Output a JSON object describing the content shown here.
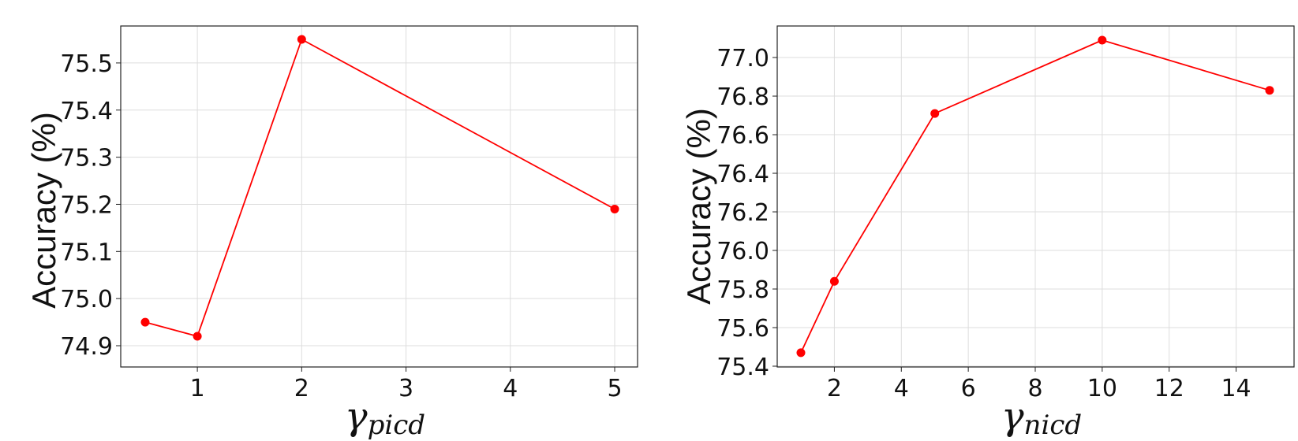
{
  "chart_data": [
    {
      "type": "line",
      "xlabel_symbol": "γ",
      "xlabel_subscript": "picd",
      "ylabel": "Accuracy (%)",
      "x_tick_labels": [
        "1",
        "2",
        "3",
        "4",
        "5"
      ],
      "y_tick_labels": [
        "74.9",
        "75.0",
        "75.1",
        "75.2",
        "75.3",
        "75.4",
        "75.5"
      ],
      "xlim": [
        0.5,
        5.0
      ],
      "ylim": [
        74.9,
        75.55
      ],
      "grid": true,
      "series": [
        {
          "x": [
            "0.5",
            "1",
            "2",
            "5"
          ],
          "y": [
            74.95,
            74.92,
            75.55,
            75.19
          ],
          "color": "#ff0000"
        }
      ]
    },
    {
      "type": "line",
      "xlabel_symbol": "γ",
      "xlabel_subscript": "nicd",
      "ylabel": "Accuracy (%)",
      "x_tick_labels": [
        "2",
        "4",
        "6",
        "8",
        "10",
        "12",
        "14"
      ],
      "y_tick_labels": [
        "75.4",
        "75.6",
        "75.8",
        "76.0",
        "76.2",
        "76.4",
        "76.6",
        "76.8",
        "77.0"
      ],
      "xlim": [
        1,
        15
      ],
      "ylim": [
        75.4,
        77.09
      ],
      "grid": true,
      "series": [
        {
          "x": [
            1,
            2,
            5,
            10,
            15
          ],
          "y": [
            75.47,
            75.84,
            76.71,
            77.09,
            76.83
          ],
          "color": "#ff0000"
        }
      ]
    }
  ]
}
